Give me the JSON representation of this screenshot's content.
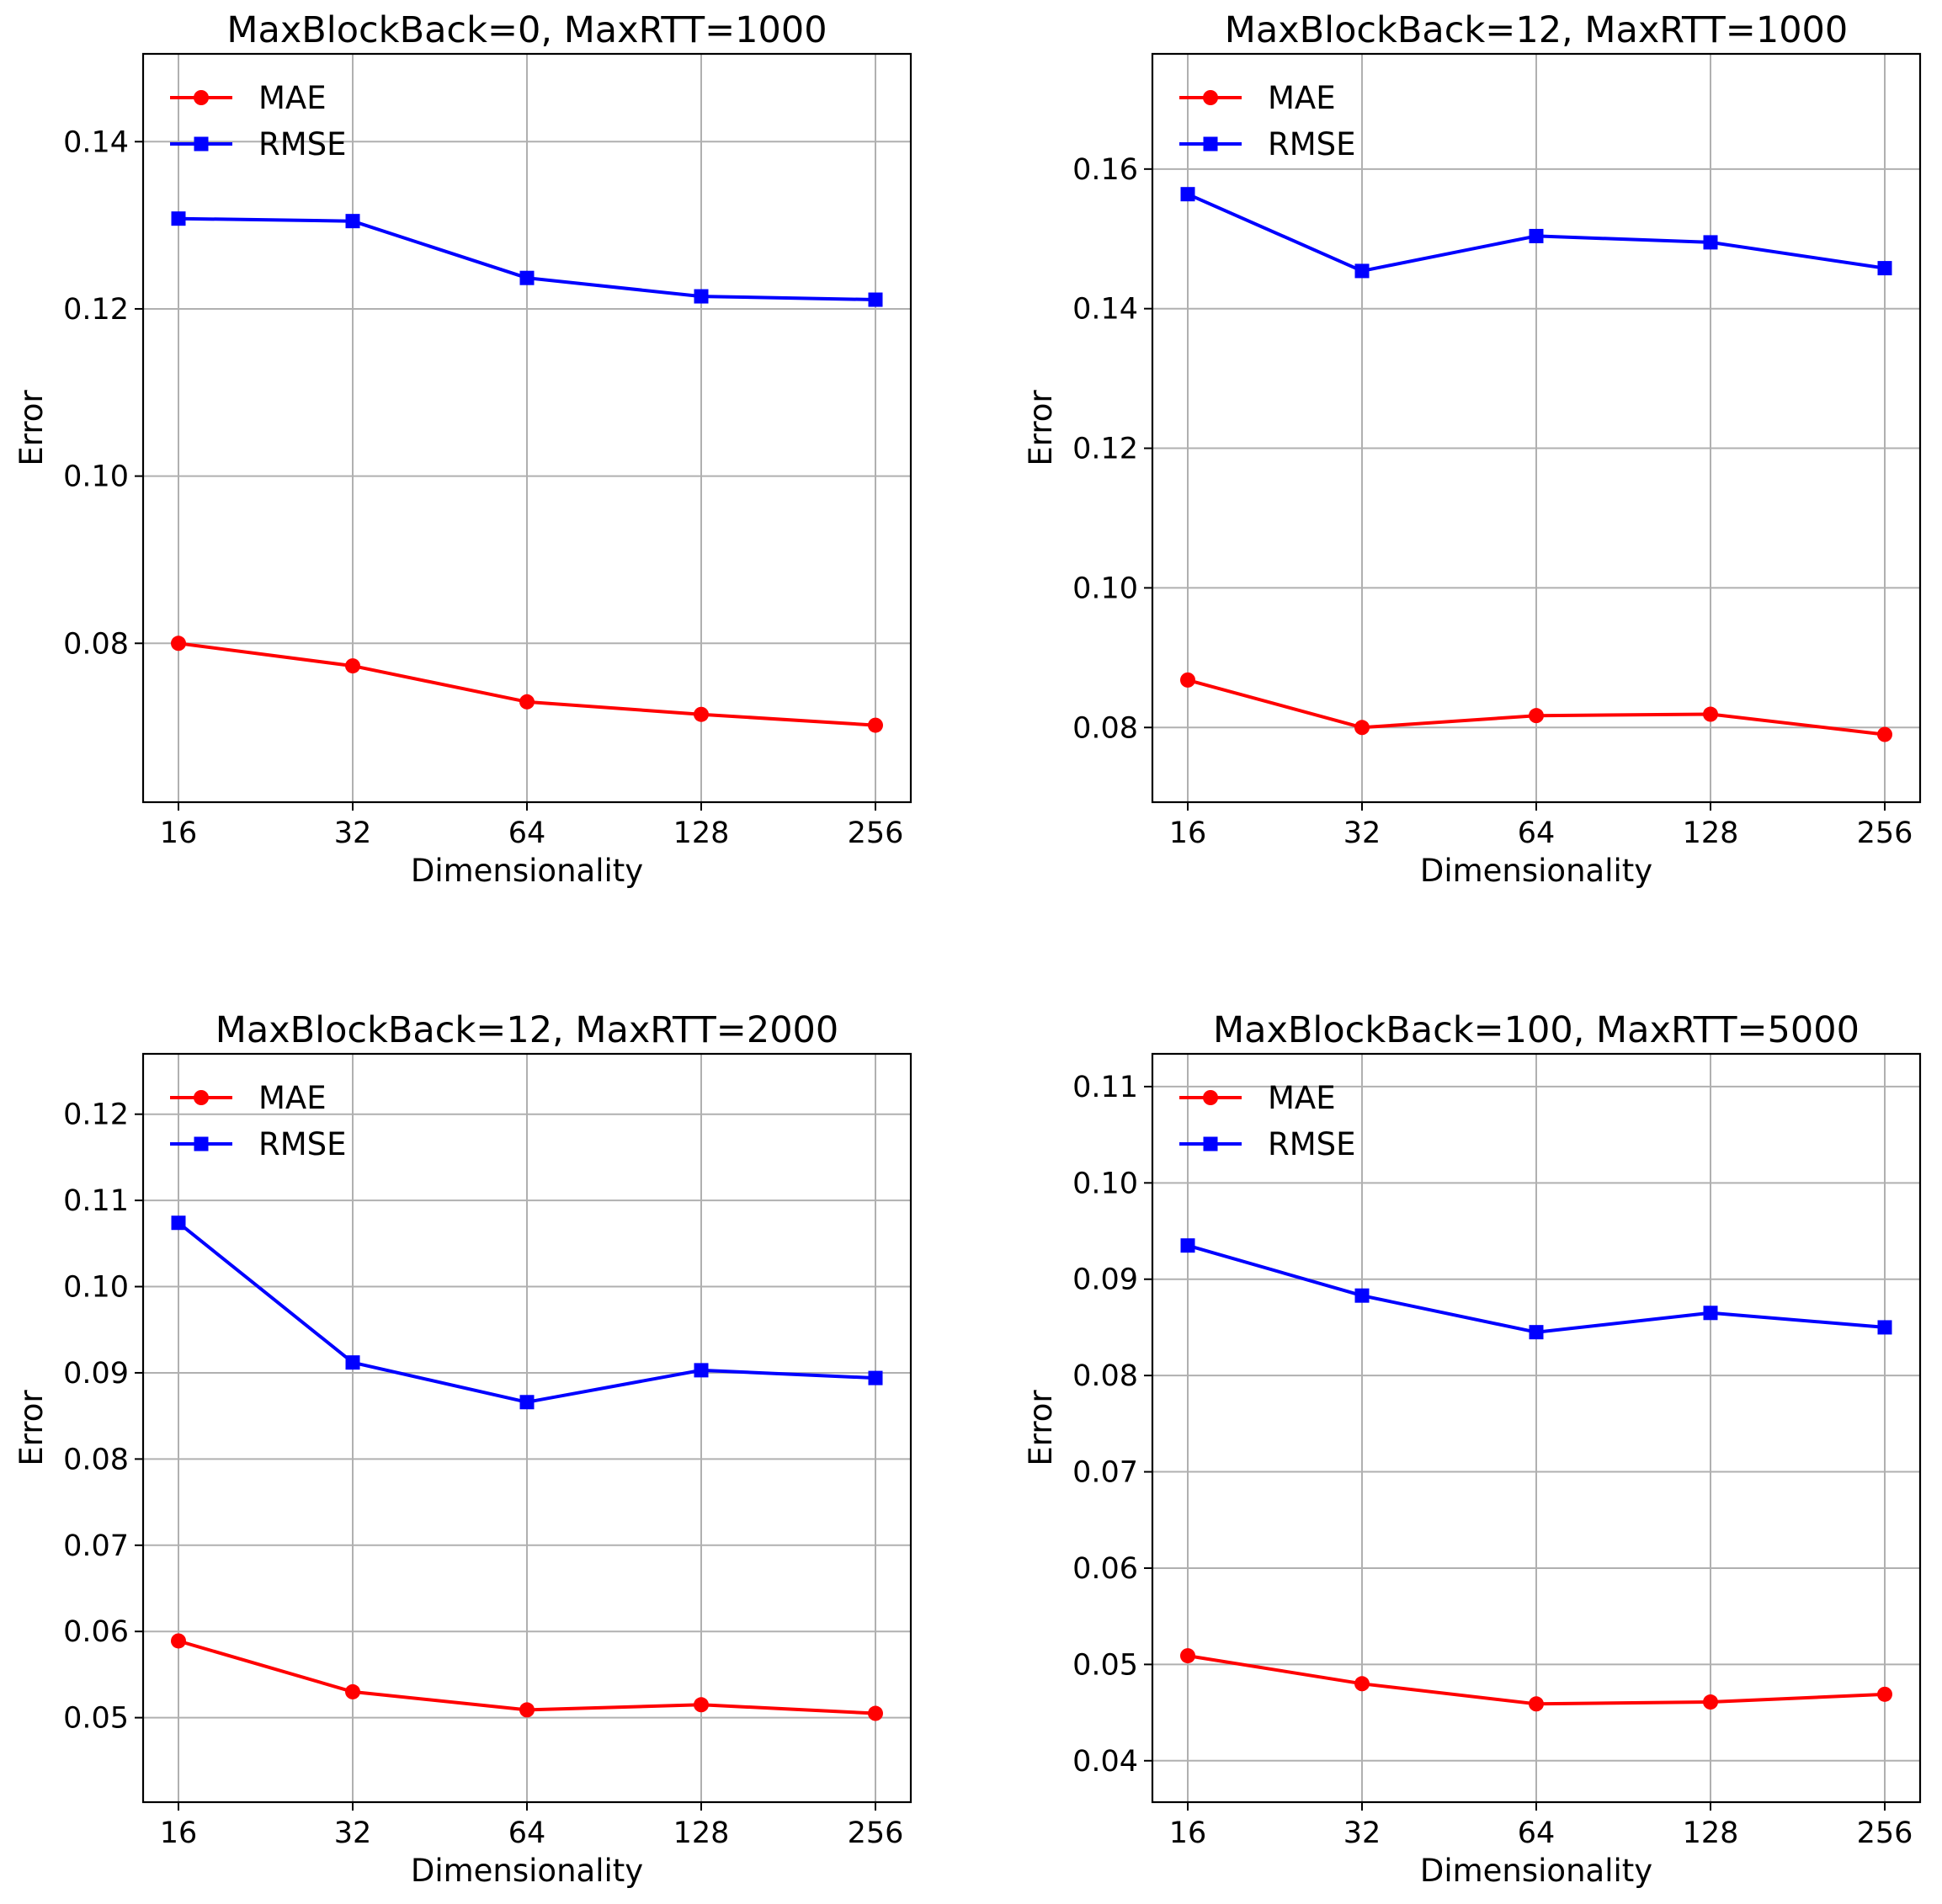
{
  "chart_data": [
    {
      "type": "line",
      "title": "MaxBlockBack=0, MaxRTT=1000",
      "xlabel": "Dimensionality",
      "ylabel": "Error",
      "x_scale": "log2",
      "x": [
        16,
        32,
        64,
        128,
        256
      ],
      "x_tick_labels": [
        "16",
        "32",
        "64",
        "128",
        "256"
      ],
      "ylim": [
        0.061,
        0.1505
      ],
      "y_ticks": [
        0.08,
        0.1,
        0.12,
        0.14
      ],
      "y_tick_labels": [
        "0.08",
        "0.10",
        "0.12",
        "0.14"
      ],
      "grid": true,
      "legend": "upper-left",
      "series": [
        {
          "name": "MAE",
          "color": "#ff0000",
          "marker": "circle",
          "values": [
            0.08,
            0.0773,
            0.073,
            0.0715,
            0.0702
          ]
        },
        {
          "name": "RMSE",
          "color": "#0000ff",
          "marker": "square",
          "values": [
            0.1308,
            0.1305,
            0.1237,
            0.1215,
            0.1211
          ]
        }
      ]
    },
    {
      "type": "line",
      "title": "MaxBlockBack=12, MaxRTT=1000",
      "xlabel": "Dimensionality",
      "ylabel": "Error",
      "x_scale": "log2",
      "x": [
        16,
        32,
        64,
        128,
        256
      ],
      "x_tick_labels": [
        "16",
        "32",
        "64",
        "128",
        "256"
      ],
      "ylim": [
        0.0693,
        0.1765
      ],
      "y_ticks": [
        0.08,
        0.1,
        0.12,
        0.14,
        0.16
      ],
      "y_tick_labels": [
        "0.08",
        "0.10",
        "0.12",
        "0.14",
        "0.16"
      ],
      "grid": true,
      "legend": "upper-left",
      "series": [
        {
          "name": "MAE",
          "color": "#ff0000",
          "marker": "circle",
          "values": [
            0.0868,
            0.08,
            0.0817,
            0.0819,
            0.079
          ]
        },
        {
          "name": "RMSE",
          "color": "#0000ff",
          "marker": "square",
          "values": [
            0.1564,
            0.1454,
            0.1504,
            0.1495,
            0.1458
          ]
        }
      ]
    },
    {
      "type": "line",
      "title": "MaxBlockBack=12, MaxRTT=2000",
      "xlabel": "Dimensionality",
      "ylabel": "Error",
      "x_scale": "log2",
      "x": [
        16,
        32,
        64,
        128,
        256
      ],
      "x_tick_labels": [
        "16",
        "32",
        "64",
        "128",
        "256"
      ],
      "ylim": [
        0.0402,
        0.127
      ],
      "y_ticks": [
        0.05,
        0.06,
        0.07,
        0.08,
        0.09,
        0.1,
        0.11,
        0.12
      ],
      "y_tick_labels": [
        "0.05",
        "0.06",
        "0.07",
        "0.08",
        "0.09",
        "0.10",
        "0.11",
        "0.12"
      ],
      "grid": true,
      "legend": "upper-left",
      "series": [
        {
          "name": "MAE",
          "color": "#ff0000",
          "marker": "circle",
          "values": [
            0.0589,
            0.053,
            0.0509,
            0.0515,
            0.0505
          ]
        },
        {
          "name": "RMSE",
          "color": "#0000ff",
          "marker": "square",
          "values": [
            0.1074,
            0.0912,
            0.0866,
            0.0903,
            0.0894
          ]
        }
      ]
    },
    {
      "type": "line",
      "title": "MaxBlockBack=100, MaxRTT=5000",
      "xlabel": "Dimensionality",
      "ylabel": "Error",
      "x_scale": "log2",
      "x": [
        16,
        32,
        64,
        128,
        256
      ],
      "x_tick_labels": [
        "16",
        "32",
        "64",
        "128",
        "256"
      ],
      "ylim": [
        0.0357,
        0.1134
      ],
      "y_ticks": [
        0.04,
        0.05,
        0.06,
        0.07,
        0.08,
        0.09,
        0.1,
        0.11
      ],
      "y_tick_labels": [
        "0.04",
        "0.05",
        "0.06",
        "0.07",
        "0.08",
        "0.09",
        "0.10",
        "0.11"
      ],
      "grid": true,
      "legend": "upper-left",
      "series": [
        {
          "name": "MAE",
          "color": "#ff0000",
          "marker": "circle",
          "values": [
            0.0509,
            0.048,
            0.0459,
            0.0461,
            0.0469
          ]
        },
        {
          "name": "RMSE",
          "color": "#0000ff",
          "marker": "square",
          "values": [
            0.0935,
            0.0883,
            0.0845,
            0.0865,
            0.085
          ]
        }
      ]
    }
  ]
}
